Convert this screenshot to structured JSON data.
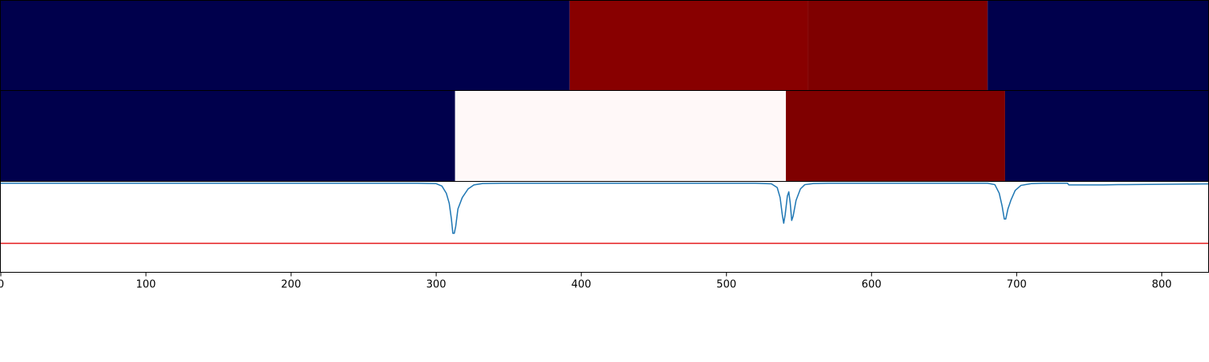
{
  "chart_data": [
    {
      "type": "heatmap",
      "segments": [
        {
          "start": 0,
          "end": 392,
          "color": "#00004c"
        },
        {
          "start": 392,
          "end": 556,
          "color": "#880000"
        },
        {
          "start": 556,
          "end": 680,
          "color": "#7f0000"
        },
        {
          "start": 680,
          "end": 832,
          "color": "#00004c"
        }
      ]
    },
    {
      "type": "heatmap",
      "segments": [
        {
          "start": 0,
          "end": 313,
          "color": "#00004c"
        },
        {
          "start": 313,
          "end": 541,
          "color": "#fff8f8"
        },
        {
          "start": 541,
          "end": 692,
          "color": "#7f0000"
        },
        {
          "start": 692,
          "end": 832,
          "color": "#00004c"
        }
      ]
    },
    {
      "type": "line",
      "xlim": [
        0,
        832
      ],
      "ylim": [
        -0.62,
        0.01
      ],
      "series": [
        {
          "color": "#1f77b4",
          "points": [
            [
              0,
              0
            ],
            [
              160,
              0
            ],
            [
              287,
              0
            ],
            [
              300,
              -0.003
            ],
            [
              304,
              -0.02
            ],
            [
              307,
              -0.07
            ],
            [
              309,
              -0.14
            ],
            [
              310.5,
              -0.25
            ],
            [
              311.5,
              -0.35
            ],
            [
              312.5,
              -0.35
            ],
            [
              313.5,
              -0.3
            ],
            [
              315,
              -0.18
            ],
            [
              318,
              -0.1
            ],
            [
              322,
              -0.04
            ],
            [
              326,
              -0.012
            ],
            [
              332,
              -0.002
            ],
            [
              345,
              0
            ],
            [
              520,
              0
            ],
            [
              531,
              -0.004
            ],
            [
              535,
              -0.03
            ],
            [
              537,
              -0.1
            ],
            [
              538.5,
              -0.22
            ],
            [
              539.5,
              -0.28
            ],
            [
              540.5,
              -0.22
            ],
            [
              542,
              -0.09
            ],
            [
              543,
              -0.06
            ],
            [
              544,
              -0.14
            ],
            [
              545,
              -0.26
            ],
            [
              546,
              -0.23
            ],
            [
              548,
              -0.12
            ],
            [
              551,
              -0.04
            ],
            [
              554,
              -0.01
            ],
            [
              560,
              -0.002
            ],
            [
              570,
              0
            ],
            [
              680,
              0
            ],
            [
              685,
              -0.01
            ],
            [
              688,
              -0.07
            ],
            [
              690,
              -0.16
            ],
            [
              691.5,
              -0.25
            ],
            [
              692.5,
              -0.25
            ],
            [
              694,
              -0.18
            ],
            [
              696,
              -0.12
            ],
            [
              699,
              -0.05
            ],
            [
              703,
              -0.015
            ],
            [
              710,
              -0.003
            ],
            [
              718,
              0
            ],
            [
              735,
              0
            ],
            [
              736,
              -0.012
            ],
            [
              760,
              -0.012
            ],
            [
              770,
              -0.01
            ],
            [
              790,
              -0.008
            ],
            [
              830,
              -0.005
            ],
            [
              832,
              -0.005
            ]
          ]
        }
      ],
      "threshold": {
        "y": -0.42,
        "color": "#e41a1c"
      },
      "xticks": [
        0,
        100,
        200,
        300,
        400,
        500,
        600,
        700,
        800
      ]
    }
  ]
}
